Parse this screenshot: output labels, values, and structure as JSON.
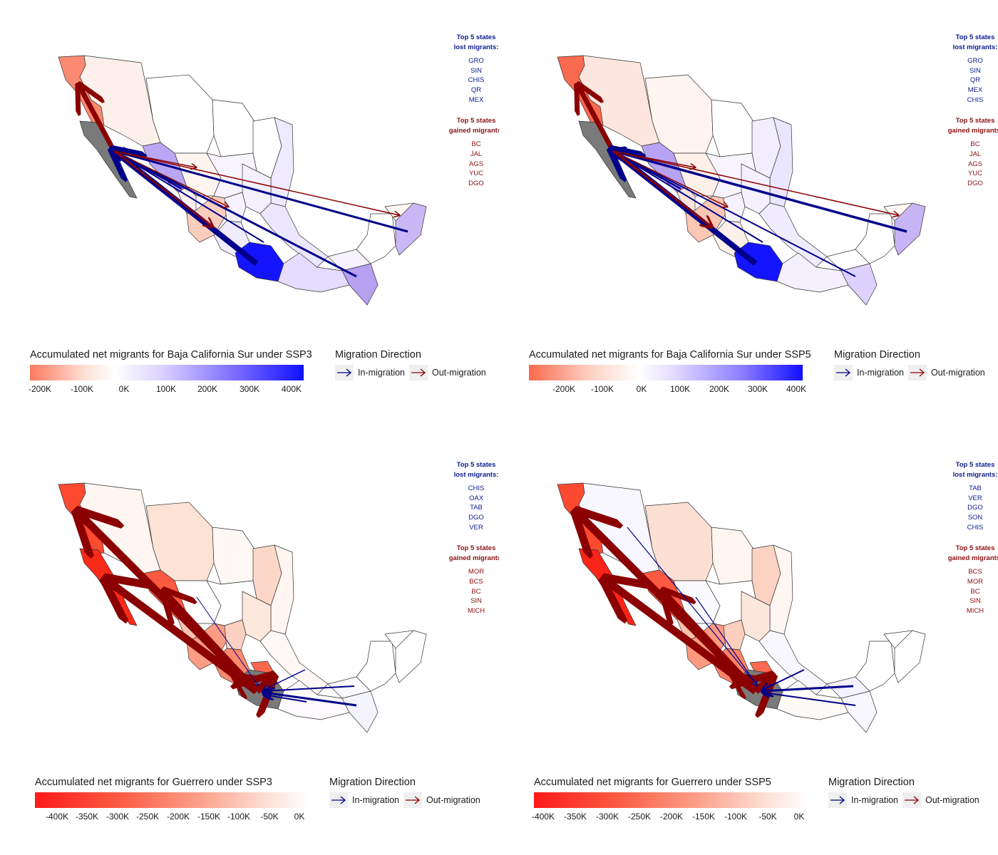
{
  "panels": [
    {
      "top5_lost_header": [
        "Top 5 states",
        "lost migrants:"
      ],
      "top5_lost": [
        "GRO",
        "SIN",
        "CHIS",
        "QR",
        "MEX"
      ],
      "top5_gained_header": [
        "Top 5 states",
        "gained migrants:"
      ],
      "top5_gained": [
        "BC",
        "JAL",
        "AGS",
        "YUC",
        "DGO"
      ],
      "legend_title": "Accumulated net migrants for Baja California Sur under SSP3",
      "colorbar_ticks": [
        "-200K",
        "-100K",
        "0K",
        "100K",
        "200K",
        "300K",
        "400K"
      ],
      "direction_title": "Migration Direction",
      "in_label": "In-migration",
      "out_label": "Out-migration"
    },
    {
      "top5_lost_header": [
        "Top 5 states",
        "lost migrants:"
      ],
      "top5_lost": [
        "GRO",
        "SIN",
        "QR",
        "MEX",
        "CHIS"
      ],
      "top5_gained_header": [
        "Top 5 states",
        "gained migrants:"
      ],
      "top5_gained": [
        "BC",
        "JAL",
        "AGS",
        "YUC",
        "DGO"
      ],
      "legend_title": "Accumulated net migrants for Baja California Sur under SSP5",
      "colorbar_ticks": [
        "-200K",
        "-100K",
        "0K",
        "100K",
        "200K",
        "300K",
        "400K"
      ],
      "direction_title": "Migration Direction",
      "in_label": "In-migration",
      "out_label": "Out-migration"
    },
    {
      "top5_lost_header": [
        "Top 5 states",
        "lost migrants:"
      ],
      "top5_lost": [
        "CHIS",
        "OAX",
        "TAB",
        "DGO",
        "VER"
      ],
      "top5_gained_header": [
        "Top 5 states",
        "gained migrants:"
      ],
      "top5_gained": [
        "MOR",
        "BCS",
        "BC",
        "SIN",
        "MICH"
      ],
      "legend_title": "Accumulated net migrants for Guerrero under SSP3",
      "colorbar_ticks": [
        "-400K",
        "-350K",
        "-300K",
        "-250K",
        "-200K",
        "-150K",
        "-100K",
        "-50K",
        "0K"
      ],
      "direction_title": "Migration Direction",
      "in_label": "In-migration",
      "out_label": "Out-migration"
    },
    {
      "top5_lost_header": [
        "Top 5 states",
        "lost migrants:"
      ],
      "top5_lost": [
        "TAB",
        "VER",
        "DGO",
        "SON",
        "CHIS"
      ],
      "top5_gained_header": [
        "Top 5 states",
        "gained migrants:"
      ],
      "top5_gained": [
        "BCS",
        "MOR",
        "BC",
        "SIN",
        "MICH"
      ],
      "legend_title": "Accumulated net migrants for Guerrero under SSP5",
      "colorbar_ticks": [
        "-400K",
        "-350K",
        "-300K",
        "-250K",
        "-200K",
        "-150K",
        "-100K",
        "-50K",
        "0K"
      ],
      "direction_title": "Migration Direction",
      "in_label": "In-migration",
      "out_label": "Out-migration"
    }
  ],
  "colors": {
    "in_migration": "#00008b",
    "out_migration": "#8b0000",
    "negative_scale": "#ff1a1a",
    "positive_scale": "#1a1aff",
    "origin_state": "#7a7a7a",
    "state_border": "#333333"
  }
}
